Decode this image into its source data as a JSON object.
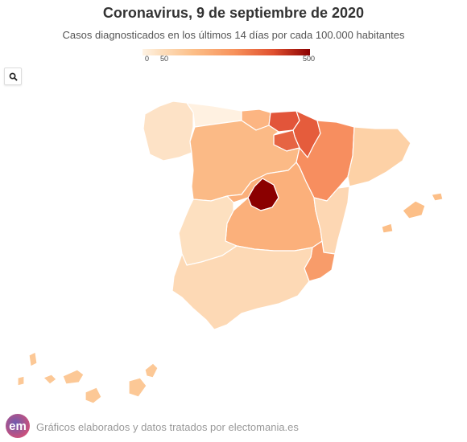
{
  "header": {
    "title": "Coronavirus, 9 de septiembre de 2020",
    "subtitle": "Casos diagnosticados en los últimos 14 días por cada 100.000 habitantes"
  },
  "legend": {
    "min_label": "0",
    "mid_label": "50",
    "max_label": "500",
    "color_low": "#fff3e4",
    "color_high": "#8b0000"
  },
  "controls": {
    "search_icon": "search-icon"
  },
  "footer": {
    "logo_text": "em",
    "credit": "Gráficos elaborados y datos tratados por electomania.es"
  },
  "regions": [
    {
      "name": "Galicia",
      "value": 60,
      "color": "#fde2c6"
    },
    {
      "name": "Asturias",
      "value": 20,
      "color": "#fff1e1"
    },
    {
      "name": "Cantabria",
      "value": 130,
      "color": "#fcb582"
    },
    {
      "name": "País Vasco",
      "value": 320,
      "color": "#e2553a"
    },
    {
      "name": "Navarra",
      "value": 300,
      "color": "#e55c3c"
    },
    {
      "name": "La Rioja",
      "value": 290,
      "color": "#e66443"
    },
    {
      "name": "Castilla y León",
      "value": 130,
      "color": "#fbba86"
    },
    {
      "name": "Aragón",
      "value": 220,
      "color": "#f78e5f"
    },
    {
      "name": "Cataluña",
      "value": 90,
      "color": "#fdd1a6"
    },
    {
      "name": "Madrid",
      "value": 500,
      "color": "#8b0000"
    },
    {
      "name": "Castilla-La Mancha",
      "value": 150,
      "color": "#fbb07b"
    },
    {
      "name": "Extremadura",
      "value": 70,
      "color": "#fde0c0"
    },
    {
      "name": "Comunidad Valenciana",
      "value": 80,
      "color": "#fdd7b3"
    },
    {
      "name": "Murcia",
      "value": 190,
      "color": "#f89c6a"
    },
    {
      "name": "Andalucía",
      "value": 70,
      "color": "#fdd9b5"
    },
    {
      "name": "Islas Baleares",
      "value": 130,
      "color": "#fcbf88"
    },
    {
      "name": "Canarias",
      "value": 110,
      "color": "#fcc896"
    }
  ]
}
